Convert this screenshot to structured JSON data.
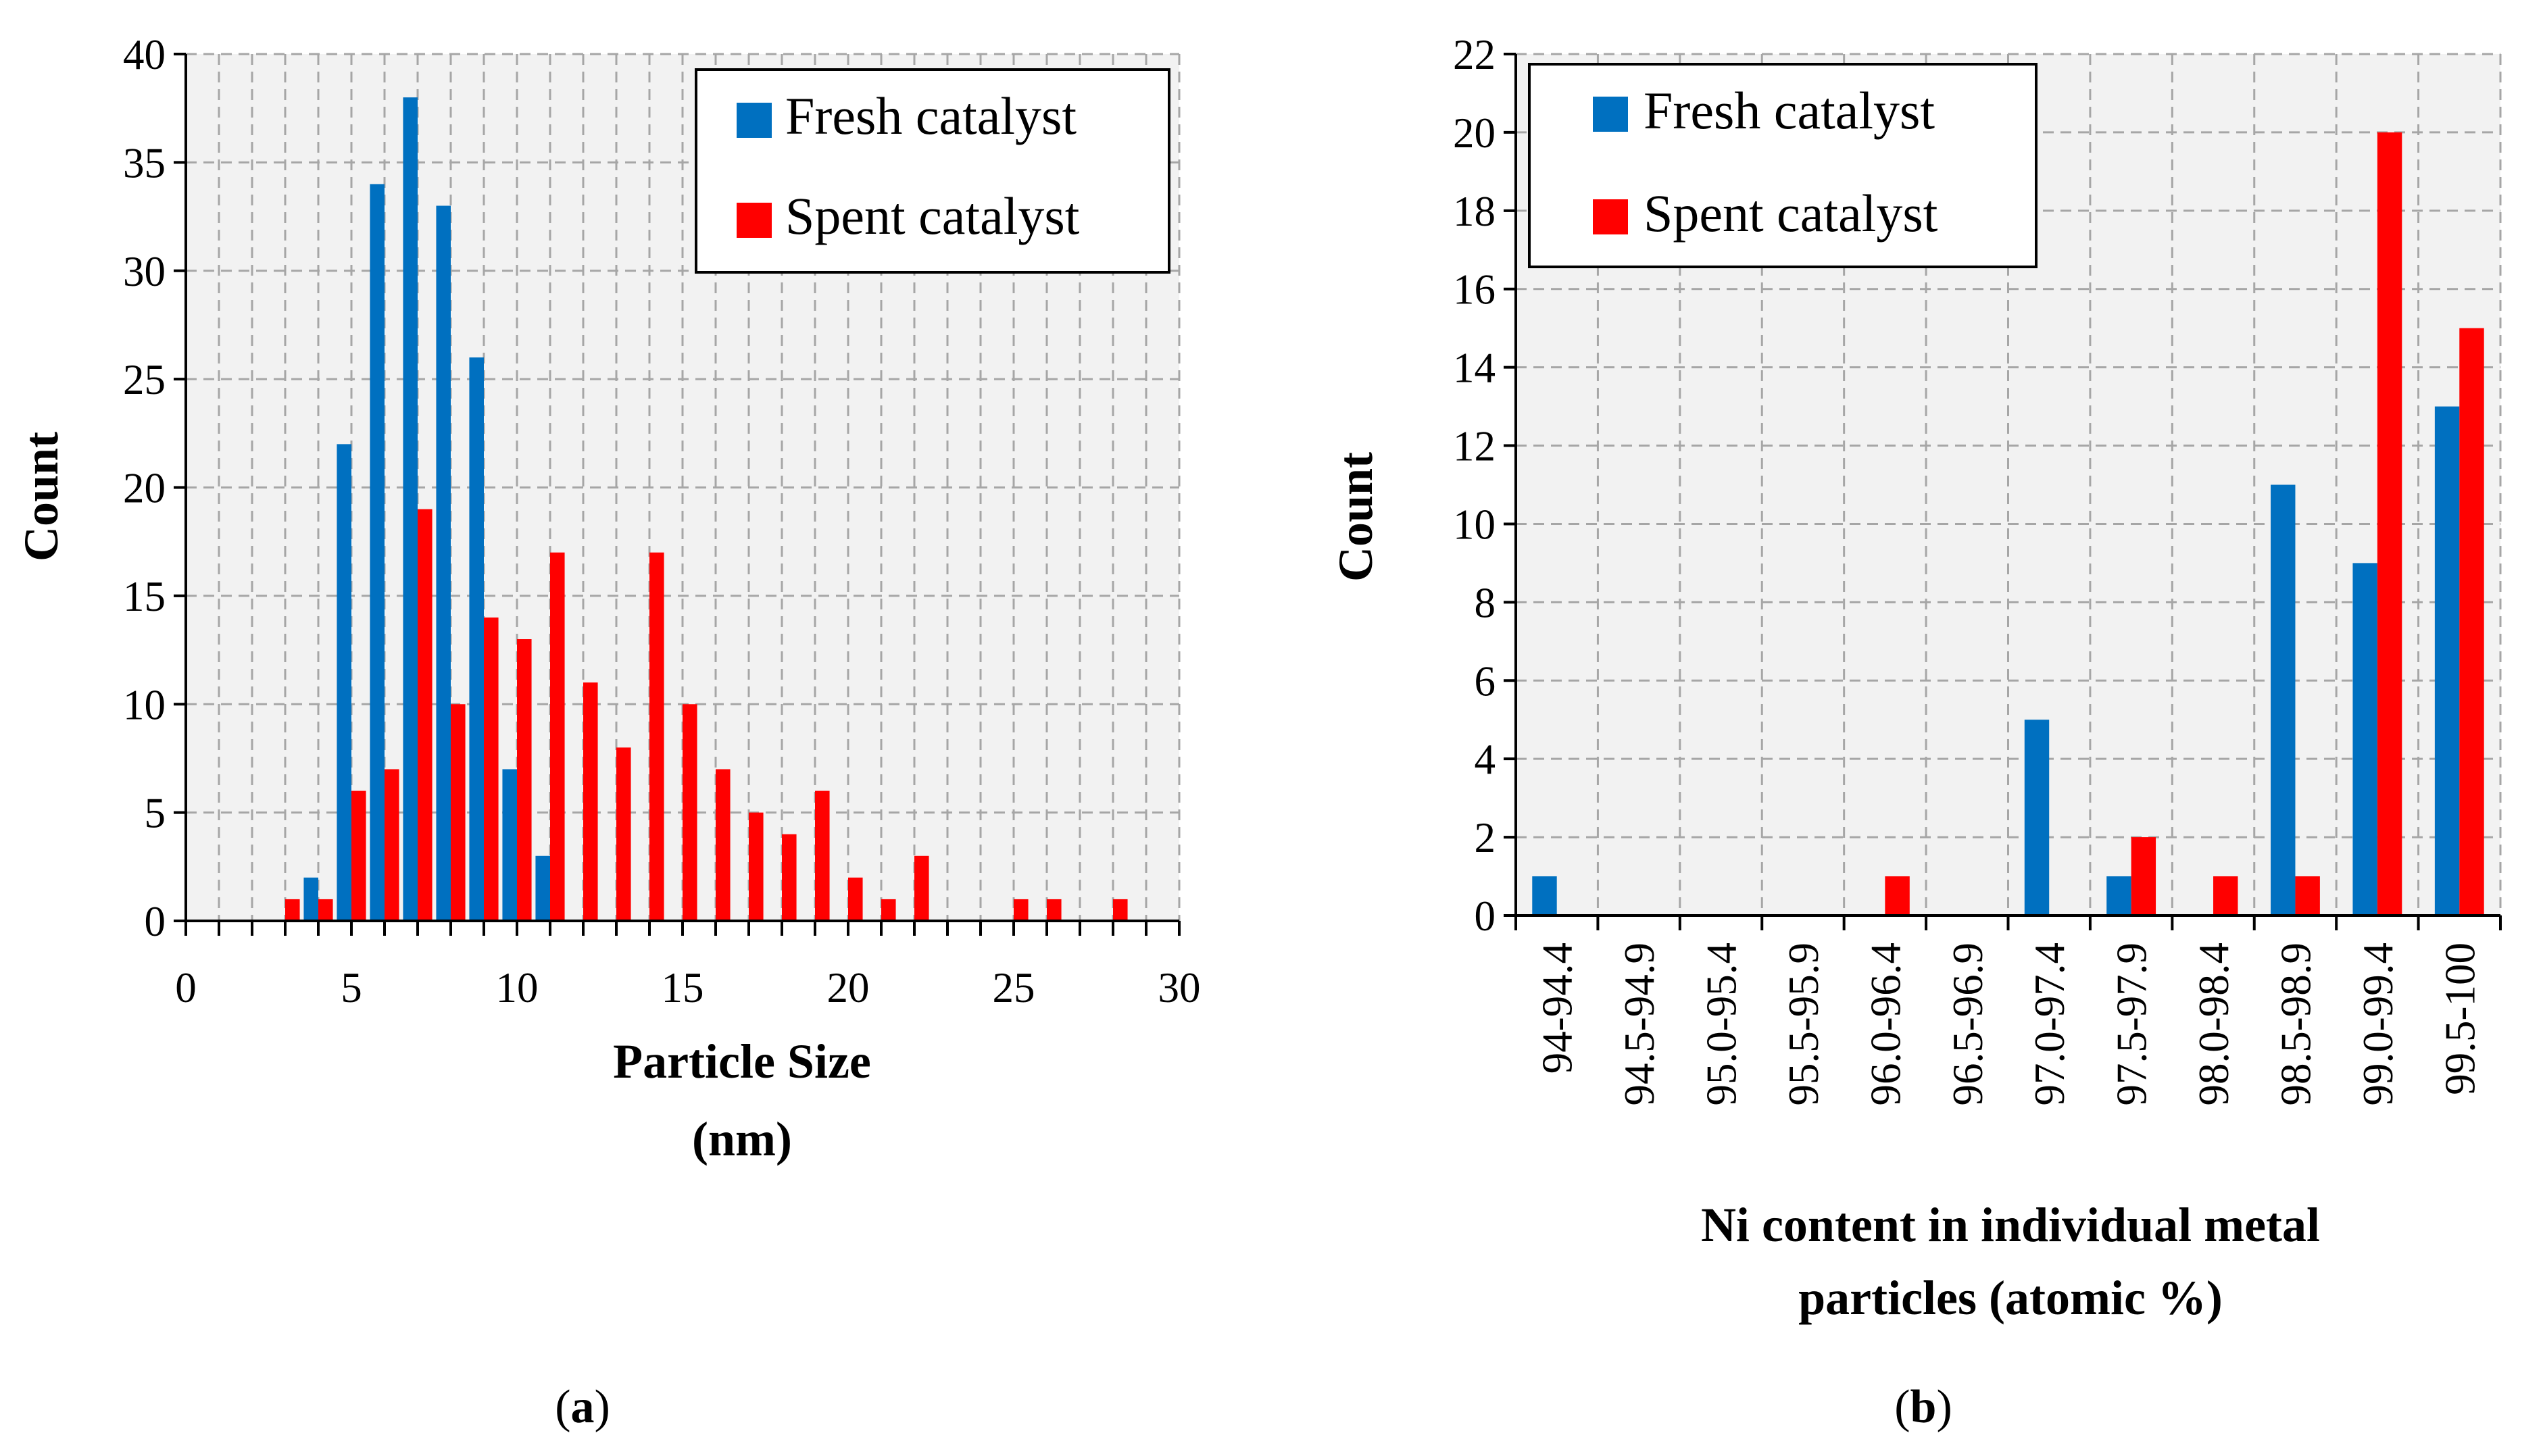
{
  "colors": {
    "fresh": "#0070C0",
    "spent": "#FF0000",
    "plot_bg": "#F2F2F2",
    "grid": "#A6A6A6"
  },
  "chart_data": [
    {
      "id": "a",
      "type": "bar",
      "caption_letter": "a",
      "xlabel_line1": "Particle Size",
      "xlabel_line2": "(nm)",
      "ylabel": "Count",
      "xlim": [
        0,
        30
      ],
      "ylim": [
        0,
        40
      ],
      "xticks": [
        "0",
        "5",
        "10",
        "15",
        "20",
        "25",
        "30"
      ],
      "yticks": [
        "0",
        "5",
        "10",
        "15",
        "20",
        "25",
        "30",
        "35",
        "40"
      ],
      "legend": [
        "Fresh catalyst",
        "Spent catalyst"
      ],
      "legend_position": "top-right",
      "grid": true,
      "series": [
        {
          "name": "Fresh catalyst",
          "x": [
            4,
            5,
            6,
            7,
            8,
            9,
            10,
            11
          ],
          "values": [
            2,
            22,
            34,
            38,
            33,
            26,
            7,
            3
          ]
        },
        {
          "name": "Spent catalyst",
          "x": [
            3,
            4,
            5,
            6,
            7,
            8,
            9,
            10,
            11,
            12,
            13,
            14,
            15,
            16,
            17,
            18,
            19,
            20,
            21,
            22,
            25,
            26,
            28
          ],
          "values": [
            1,
            1,
            6,
            7,
            19,
            10,
            14,
            13,
            17,
            11,
            8,
            17,
            10,
            7,
            5,
            4,
            6,
            2,
            1,
            3,
            1,
            1,
            1
          ]
        }
      ]
    },
    {
      "id": "b",
      "type": "bar",
      "caption_letter": "b",
      "xlabel_line1": "Ni content in individual metal",
      "xlabel_line2": "particles (atomic %)",
      "ylabel": "Count",
      "ylim": [
        0,
        22
      ],
      "yticks": [
        "0",
        "2",
        "4",
        "6",
        "8",
        "10",
        "12",
        "14",
        "16",
        "18",
        "20",
        "22"
      ],
      "categories": [
        "94-94.4",
        "94.5-94.9",
        "95.0-95.4",
        "95.5-95.9",
        "96.0-96.4",
        "96.5-96.9",
        "97.0-97.4",
        "97.5-97.9",
        "98.0-98.4",
        "98.5-98.9",
        "99.0-99.4",
        "99.5-100"
      ],
      "legend": [
        "Fresh catalyst",
        "Spent catalyst"
      ],
      "legend_position": "top-left",
      "grid": true,
      "series": [
        {
          "name": "Fresh catalyst",
          "values": [
            1,
            0,
            0,
            0,
            0,
            0,
            5,
            1,
            0,
            11,
            9,
            13
          ]
        },
        {
          "name": "Spent catalyst",
          "values": [
            0,
            0,
            0,
            0,
            1,
            0,
            0,
            2,
            1,
            1,
            20,
            15
          ]
        }
      ]
    }
  ]
}
